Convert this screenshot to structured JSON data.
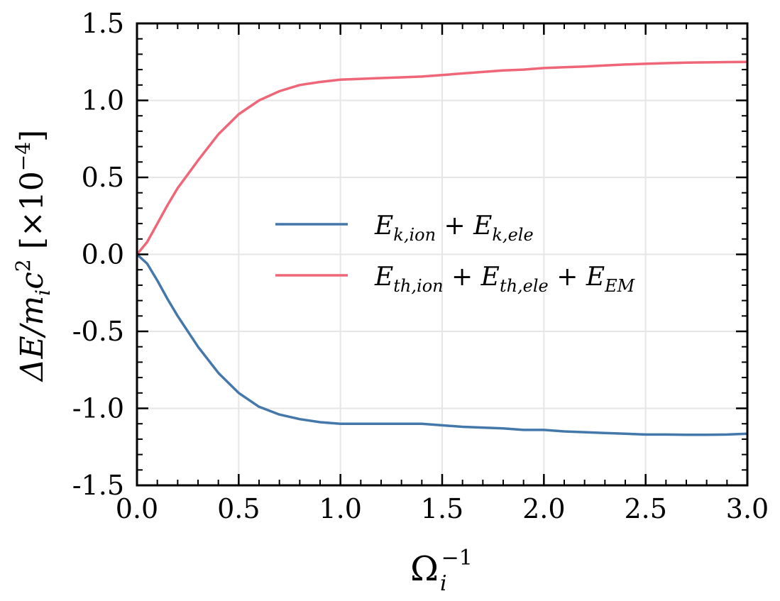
{
  "chart_data": {
    "type": "line",
    "title": "",
    "xlabel": {
      "base": "Ω",
      "sub": "i",
      "sup": "−1"
    },
    "ylabel": {
      "main": "ΔE/m",
      "sub": "i",
      "main2": "c",
      "sup": "2",
      "scale_open": " [×10",
      "scale_sup": "−4",
      "scale_close": "]"
    },
    "xlim": [
      0,
      3
    ],
    "ylim": [
      -1.5,
      1.5
    ],
    "xticks": [
      0,
      0.5,
      1,
      1.5,
      2,
      2.5,
      3
    ],
    "yticks": [
      -1.5,
      -1,
      -0.5,
      0,
      0.5,
      1,
      1.5
    ],
    "xtick_labels": [
      "0.0",
      "0.5",
      "1.0",
      "1.5",
      "2.0",
      "2.5",
      "3.0"
    ],
    "ytick_labels": [
      "-1.5",
      "-1.0",
      "-0.5",
      "0.0",
      "0.5",
      "1.0",
      "1.5"
    ],
    "grid": true,
    "legend_position": "center-right",
    "series": [
      {
        "key": "kinetic",
        "legend": {
          "t1": "E",
          "s1": "k,ion",
          "op": " + ",
          "t2": "E",
          "s2": "k,ele"
        },
        "color": "#4477aa",
        "x": [
          0,
          0.05,
          0.1,
          0.15,
          0.2,
          0.3,
          0.4,
          0.5,
          0.6,
          0.7,
          0.8,
          0.9,
          1.0,
          1.1,
          1.2,
          1.3,
          1.4,
          1.5,
          1.6,
          1.7,
          1.8,
          1.9,
          2.0,
          2.1,
          2.2,
          2.3,
          2.4,
          2.5,
          2.6,
          2.7,
          2.8,
          2.9,
          3.0
        ],
        "y": [
          0,
          -0.06,
          -0.17,
          -0.29,
          -0.4,
          -0.6,
          -0.77,
          -0.9,
          -0.99,
          -1.04,
          -1.07,
          -1.09,
          -1.1,
          -1.1,
          -1.1,
          -1.1,
          -1.1,
          -1.11,
          -1.12,
          -1.125,
          -1.13,
          -1.14,
          -1.14,
          -1.15,
          -1.155,
          -1.16,
          -1.165,
          -1.17,
          -1.17,
          -1.172,
          -1.172,
          -1.17,
          -1.165
        ]
      },
      {
        "key": "thermal",
        "legend": {
          "t1": "E",
          "s1": "th,ion",
          "op": " + ",
          "t2": "E",
          "s2": "th,ele",
          "op2": " + ",
          "t3": "E",
          "s3": "EM"
        },
        "color": "#ee6677",
        "x": [
          0,
          0.05,
          0.1,
          0.15,
          0.2,
          0.3,
          0.4,
          0.5,
          0.6,
          0.7,
          0.8,
          0.9,
          1.0,
          1.1,
          1.2,
          1.3,
          1.4,
          1.5,
          1.6,
          1.7,
          1.8,
          1.9,
          2.0,
          2.1,
          2.2,
          2.3,
          2.4,
          2.5,
          2.6,
          2.7,
          2.8,
          2.9,
          3.0
        ],
        "y": [
          0,
          0.08,
          0.2,
          0.32,
          0.43,
          0.61,
          0.78,
          0.91,
          1.0,
          1.06,
          1.1,
          1.12,
          1.135,
          1.14,
          1.145,
          1.15,
          1.155,
          1.165,
          1.175,
          1.185,
          1.195,
          1.2,
          1.21,
          1.215,
          1.22,
          1.227,
          1.233,
          1.238,
          1.242,
          1.245,
          1.247,
          1.249,
          1.25
        ]
      }
    ]
  }
}
